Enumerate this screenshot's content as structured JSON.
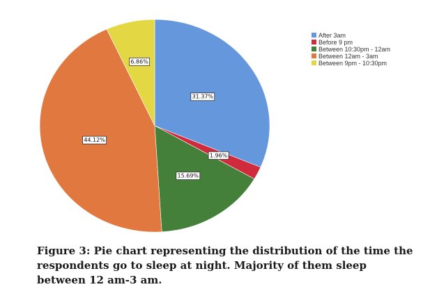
{
  "chart_data": {
    "type": "pie",
    "slices": [
      {
        "label": "After 3am",
        "value": 31.37,
        "value_label": "31.37%",
        "color": "#6497db"
      },
      {
        "label": "Before 9 pm",
        "value": 1.96,
        "value_label": "1.96%",
        "color": "#cf2b3c"
      },
      {
        "label": "Between 10:30pm - 12am",
        "value": 15.69,
        "value_label": "15.69%",
        "color": "#44803a"
      },
      {
        "label": "Between 12am - 3am",
        "value": 44.12,
        "value_label": "44.12%",
        "color": "#e07840"
      },
      {
        "label": "Between 9pm - 10:30pm",
        "value": 6.86,
        "value_label": "6.86%",
        "color": "#e3d844"
      }
    ],
    "legend_position": "top-right"
  },
  "caption": {
    "text": "Figure 3: Pie chart representing the distribution of the time the respondents go to sleep at night. Majority of them sleep between 12 am-3 am."
  }
}
